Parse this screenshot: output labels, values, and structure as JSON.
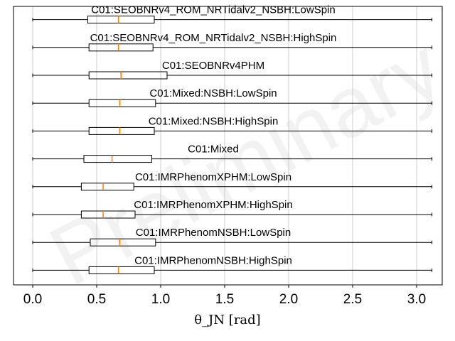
{
  "chart_data": {
    "type": "box",
    "orientation": "horizontal",
    "xlabel": "θ_JN [rad]",
    "xlim": [
      -0.15,
      3.2
    ],
    "xticks": [
      0.0,
      0.5,
      1.0,
      1.5,
      2.0,
      2.5,
      3.0
    ],
    "xtick_labels": [
      "0.0",
      "0.5",
      "1.0",
      "1.5",
      "2.0",
      "2.5",
      "3.0"
    ],
    "grid": "vertical",
    "watermark": "Preliminary",
    "colors": {
      "median": "#ff7f0e",
      "box": "#000000",
      "grid": "#cccccc"
    },
    "series": [
      {
        "name": "C01:SEOBNRv4_ROM_NRTidalv2_NSBH:LowSpin",
        "whislo": 0.0,
        "q1": 0.43,
        "med": 0.67,
        "q3": 0.95,
        "whishi": 3.12
      },
      {
        "name": "C01:SEOBNRv4_ROM_NRTidalv2_NSBH:HighSpin",
        "whislo": 0.0,
        "q1": 0.44,
        "med": 0.67,
        "q3": 0.94,
        "whishi": 3.12
      },
      {
        "name": "C01:SEOBNRv4PHM",
        "whislo": 0.0,
        "q1": 0.44,
        "med": 0.69,
        "q3": 1.05,
        "whishi": 3.12
      },
      {
        "name": "C01:Mixed:NSBH:LowSpin",
        "whislo": 0.0,
        "q1": 0.44,
        "med": 0.68,
        "q3": 0.96,
        "whishi": 3.12
      },
      {
        "name": "C01:Mixed:NSBH:HighSpin",
        "whislo": 0.0,
        "q1": 0.44,
        "med": 0.68,
        "q3": 0.95,
        "whishi": 3.12
      },
      {
        "name": "C01:Mixed",
        "whislo": 0.0,
        "q1": 0.4,
        "med": 0.62,
        "q3": 0.93,
        "whishi": 3.12
      },
      {
        "name": "C01:IMRPhenomXPHM:LowSpin",
        "whislo": 0.0,
        "q1": 0.38,
        "med": 0.55,
        "q3": 0.79,
        "whishi": 3.12
      },
      {
        "name": "C01:IMRPhenomXPHM:HighSpin",
        "whislo": 0.0,
        "q1": 0.38,
        "med": 0.55,
        "q3": 0.8,
        "whishi": 3.12
      },
      {
        "name": "C01:IMRPhenomNSBH:LowSpin",
        "whislo": 0.0,
        "q1": 0.45,
        "med": 0.68,
        "q3": 0.96,
        "whishi": 3.12
      },
      {
        "name": "C01:IMRPhenomNSBH:HighSpin",
        "whislo": 0.0,
        "q1": 0.44,
        "med": 0.67,
        "q3": 0.95,
        "whishi": 3.12
      }
    ]
  }
}
